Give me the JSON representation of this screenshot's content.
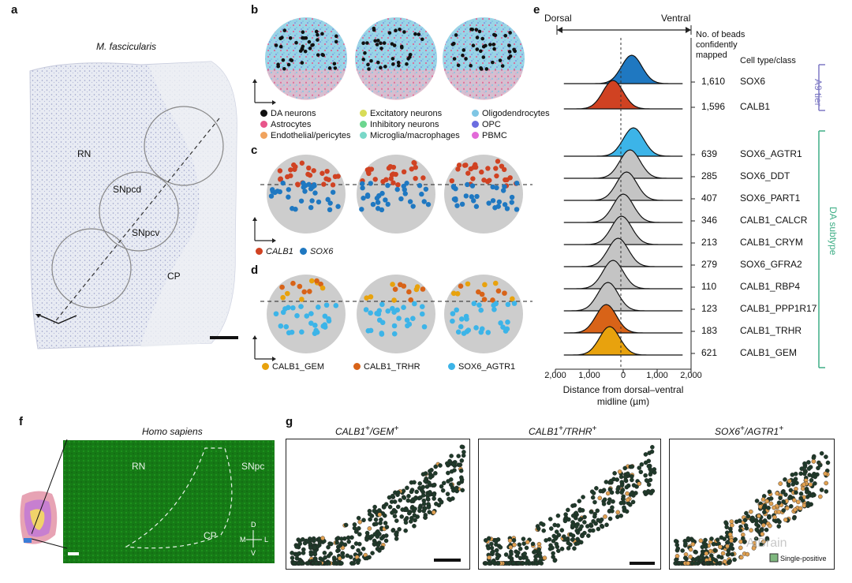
{
  "panels": {
    "a": {
      "label": "a",
      "species": "M. fascicularis",
      "regions": [
        "RN",
        "SNpcd",
        "SNpcv",
        "CP"
      ]
    },
    "b": {
      "label": "b",
      "legend": [
        {
          "name": "DA neurons",
          "color": "#111111"
        },
        {
          "name": "Astrocytes",
          "color": "#e8558a"
        },
        {
          "name": "Endothelial/pericytes",
          "color": "#f0a35e"
        },
        {
          "name": "Excitatory neurons",
          "color": "#d8dc57"
        },
        {
          "name": "Inhibitory neurons",
          "color": "#6cd68f"
        },
        {
          "name": "Microglia/macrophages",
          "color": "#79d8c8"
        },
        {
          "name": "Oligodendrocytes",
          "color": "#7fc6e4"
        },
        {
          "name": "OPC",
          "color": "#6b6de0"
        },
        {
          "name": "PBMC",
          "color": "#e26ad8"
        }
      ]
    },
    "c": {
      "label": "c",
      "legend": [
        {
          "name": "CALB1",
          "color": "#d04222"
        },
        {
          "name": "SOX6",
          "color": "#1f78c1"
        }
      ]
    },
    "d": {
      "label": "d",
      "legend": [
        {
          "name": "CALB1_GEM",
          "color": "#e8a20d"
        },
        {
          "name": "CALB1_TRHR",
          "color": "#d86318"
        },
        {
          "name": "SOX6_AGTR1",
          "color": "#3cb4e8"
        }
      ]
    },
    "e": {
      "label": "e",
      "dorsal": "Dorsal",
      "ventral": "Ventral",
      "count_header": "No. of beads confidently mapped",
      "class_header": "Cell type/class",
      "group_a9": "A9 tier",
      "group_da": "DA subtype",
      "xlabel": "Distance from dorsal–ventral midline (µm)",
      "xticks": [
        "2,000",
        "1,000",
        "0",
        "1,000",
        "2,000"
      ]
    },
    "f": {
      "label": "f",
      "species": "Homo sapiens",
      "regions": [
        "RN",
        "SNpc",
        "CP"
      ],
      "compass": {
        "d": "D",
        "v": "V",
        "m": "M",
        "l": "L"
      }
    },
    "g": {
      "label": "g",
      "titles": [
        "CALB1",
        "GEM",
        "CALB1",
        "TRHR",
        "SOX6",
        "AGTR1"
      ],
      "legend": [
        "Single-positive"
      ],
      "watermark": "AiBrain"
    }
  },
  "chart_data": {
    "type": "ridgeline",
    "xlim": [
      -2000,
      2000
    ],
    "series": [
      {
        "name": "SOX6",
        "count": 1610,
        "peak": 250,
        "color": "#1f78c1",
        "group": "A9 tier"
      },
      {
        "name": "CALB1",
        "count": 1596,
        "peak": -300,
        "color": "#d04222",
        "group": "A9 tier"
      },
      {
        "name": "SOX6_AGTR1",
        "count": 639,
        "peak": 300,
        "color": "#3cb4e8",
        "group": "DA subtype"
      },
      {
        "name": "SOX6_DDT",
        "count": 285,
        "peak": 200,
        "color": "#c4c4c4",
        "group": "DA subtype"
      },
      {
        "name": "SOX6_PART1",
        "count": 407,
        "peak": 100,
        "color": "#c4c4c4",
        "group": "DA subtype"
      },
      {
        "name": "CALB1_CALCR",
        "count": 346,
        "peak": 0,
        "color": "#c4c4c4",
        "group": "DA subtype"
      },
      {
        "name": "CALB1_CRYM",
        "count": 213,
        "peak": -50,
        "color": "#c4c4c4",
        "group": "DA subtype"
      },
      {
        "name": "SOX6_GFRA2",
        "count": 279,
        "peak": -150,
        "color": "#c4c4c4",
        "group": "DA subtype"
      },
      {
        "name": "CALB1_RBP4",
        "count": 110,
        "peak": -300,
        "color": "#c4c4c4",
        "group": "DA subtype"
      },
      {
        "name": "CALB1_PPP1R17",
        "count": 123,
        "peak": -450,
        "color": "#c4c4c4",
        "group": "DA subtype"
      },
      {
        "name": "CALB1_TRHR",
        "count": 183,
        "peak": -500,
        "color": "#d86318",
        "group": "DA subtype"
      },
      {
        "name": "CALB1_GEM",
        "count": 621,
        "peak": -400,
        "color": "#e8a20d",
        "group": "DA subtype"
      }
    ]
  }
}
